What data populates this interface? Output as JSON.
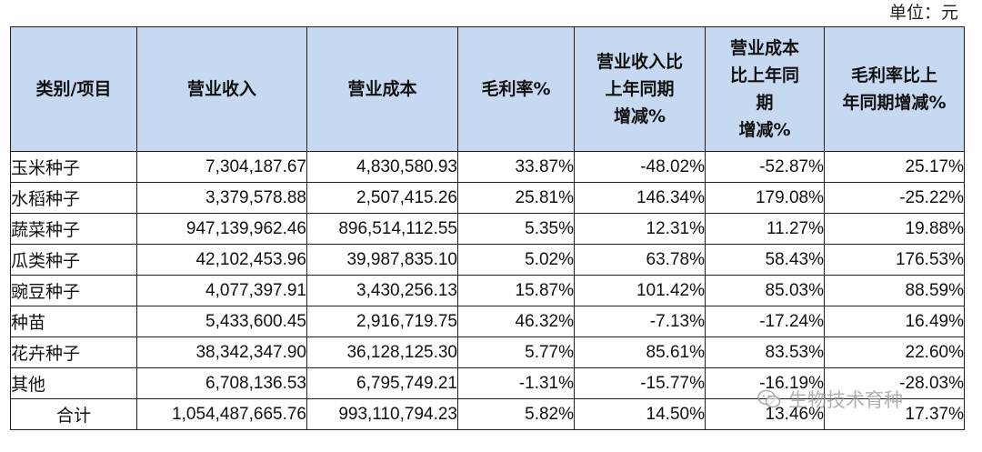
{
  "unit_label": "单位：元",
  "table": {
    "headers": [
      "类别/项目",
      "营业收入",
      "营业成本",
      "毛利率%",
      "营业收入比\n上年同期\n增减%",
      "营业成本\n比上年同\n期\n增减%",
      "毛利率比上\n年同期增减%"
    ],
    "rows": [
      {
        "category": "玉米种子",
        "revenue": "7,304,187.67",
        "cost": "4,830,580.93",
        "margin": "33.87%",
        "rev_change": "-48.02%",
        "cost_change": "-52.87%",
        "margin_change": "25.17%"
      },
      {
        "category": "水稻种子",
        "revenue": "3,379,578.88",
        "cost": "2,507,415.26",
        "margin": "25.81%",
        "rev_change": "146.34%",
        "cost_change": "179.08%",
        "margin_change": "-25.22%"
      },
      {
        "category": "蔬菜种子",
        "revenue": "947,139,962.46",
        "cost": "896,514,112.55",
        "margin": "5.35%",
        "rev_change": "12.31%",
        "cost_change": "11.27%",
        "margin_change": "19.88%"
      },
      {
        "category": "瓜类种子",
        "revenue": "42,102,453.96",
        "cost": "39,987,835.10",
        "margin": "5.02%",
        "rev_change": "63.78%",
        "cost_change": "58.43%",
        "margin_change": "176.53%"
      },
      {
        "category": "豌豆种子",
        "revenue": "4,077,397.91",
        "cost": "3,430,256.13",
        "margin": "15.87%",
        "rev_change": "101.42%",
        "cost_change": "85.03%",
        "margin_change": "88.59%"
      },
      {
        "category": "种苗",
        "revenue": "5,433,600.45",
        "cost": "2,916,719.75",
        "margin": "46.32%",
        "rev_change": "-7.13%",
        "cost_change": "-17.24%",
        "margin_change": "16.49%"
      },
      {
        "category": "花卉种子",
        "revenue": "38,342,347.90",
        "cost": "36,128,125.30",
        "margin": "5.77%",
        "rev_change": "85.61%",
        "cost_change": "83.53%",
        "margin_change": "22.60%"
      },
      {
        "category": "其他",
        "revenue": "6,708,136.53",
        "cost": "6,795,749.21",
        "margin": "-1.31%",
        "rev_change": "-15.77%",
        "cost_change": "-16.19%",
        "margin_change": "-28.03%"
      },
      {
        "category": "合计",
        "revenue": "1,054,487,665.76",
        "cost": "993,110,794.23",
        "margin": "5.82%",
        "rev_change": "14.50%",
        "cost_change": "13.46%",
        "margin_change": "17.37%"
      }
    ]
  },
  "watermark": {
    "text": "生物技术育种",
    "icon": "wechat-icon"
  },
  "colors": {
    "header_bg": "#c6d9f1",
    "border": "#1f1f1f"
  }
}
